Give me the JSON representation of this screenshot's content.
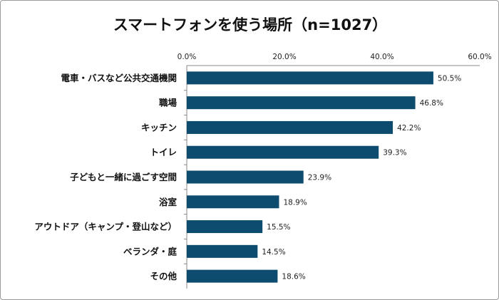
{
  "chart_data": {
    "type": "bar",
    "orientation": "horizontal",
    "title": "スマートフォンを使う場所（n=1027）",
    "categories": [
      "電車・バスなど公共交通機関",
      "職場",
      "キッチン",
      "トイレ",
      "子どもと一緒に過ごす空間",
      "浴室",
      "アウトドア（キャンプ・登山など）",
      "ベランダ・庭",
      "その他"
    ],
    "values": [
      50.5,
      46.8,
      42.2,
      39.3,
      23.9,
      18.9,
      15.5,
      14.5,
      18.6
    ],
    "data_labels": [
      "50.5%",
      "46.8%",
      "42.2%",
      "39.3%",
      "23.9%",
      "18.9%",
      "15.5%",
      "14.5%",
      "18.6%"
    ],
    "xlim": [
      0,
      60
    ],
    "xticks": [
      "0.0%",
      "20.0%",
      "40.0%",
      "60.0%"
    ],
    "axis_position": "top",
    "grid": false,
    "bar_color": "#0d4c6e"
  }
}
